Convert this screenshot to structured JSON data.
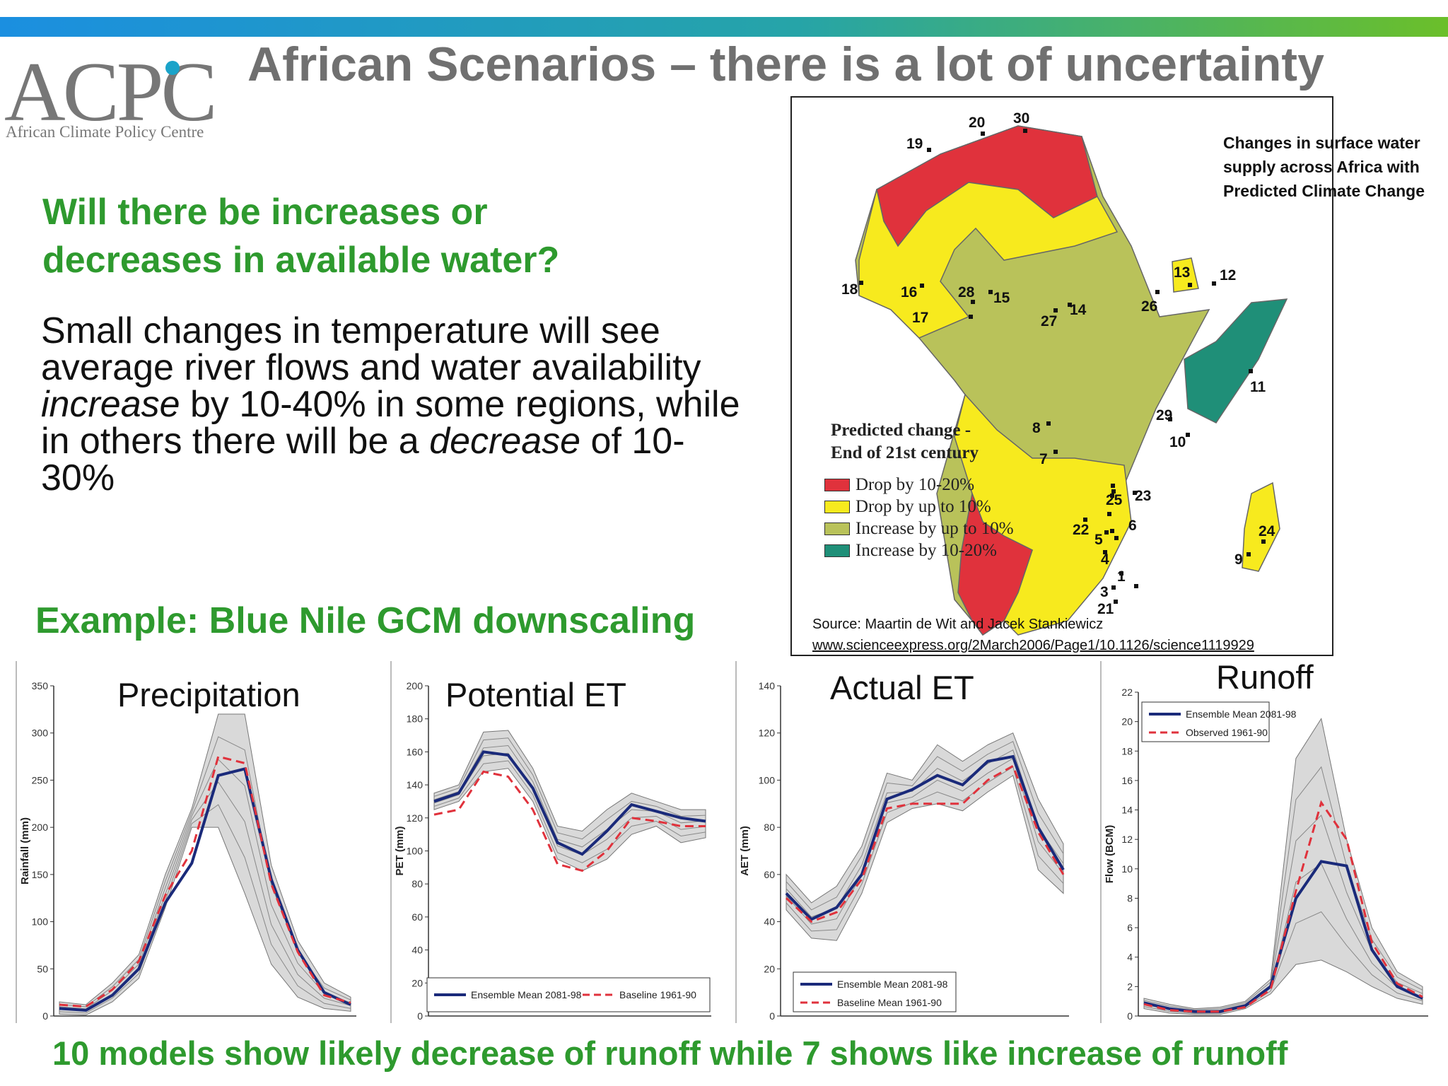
{
  "header": {
    "title": "African Scenarios – there is a lot of uncertainty",
    "logo_text": "ACPC",
    "logo_subtitle": "African Climate Policy Centre"
  },
  "colors": {
    "green": "#2e9a2e",
    "red": "#e0323c",
    "yellow": "#f7ea1e",
    "olive": "#b9c25a",
    "teal": "#1f8f78",
    "ensemble": "#1a2a7a",
    "baseline": "#e0323c"
  },
  "question": "Will there be increases or decreases in available water?",
  "body": {
    "part1": "Small changes in temperature will see average river flows and water availability ",
    "word1": "increase",
    "part2": " by 10-40% in some regions, while in others there will be a ",
    "word2": "decrease",
    "part3": " of 10-30%"
  },
  "example_heading": "Example: Blue Nile GCM downscaling",
  "bottom_statement": "10 models show likely decrease of runoff while 7 shows like increase of runoff",
  "map": {
    "caption": "Changes in surface water supply across Africa with Predicted Climate Change",
    "legend_title_1": "Predicted change -",
    "legend_title_2": "End of 21st century",
    "legend": [
      {
        "label": "Drop by 10-20%",
        "color": "#e0323c"
      },
      {
        "label": "Drop by up to 10%",
        "color": "#f7ea1e"
      },
      {
        "label": "Increase by up to 10%",
        "color": "#b9c25a"
      },
      {
        "label": "Increase by 10-20%",
        "color": "#1f8f78"
      }
    ],
    "points": [
      "1",
      "3",
      "4",
      "5",
      "6",
      "7",
      "8",
      "9",
      "10",
      "11",
      "12",
      "13",
      "14",
      "15",
      "16",
      "17",
      "18",
      "19",
      "20",
      "21",
      "22",
      "23",
      "24",
      "25",
      "26",
      "27",
      "28",
      "29",
      "30"
    ],
    "source_line1": "Source: Maartin de Wit and Jacek Stankiewicz",
    "source_line2": "www.scienceexpress.org/2March2006/Page1/10.1126/science1119929"
  },
  "chart_data": [
    {
      "type": "line",
      "title": "Precipitation",
      "ylabel": "Rainfall (mm)",
      "ylim": [
        0,
        350
      ],
      "yticks": [
        0,
        50,
        100,
        150,
        200,
        250,
        300,
        350
      ],
      "x": [
        1,
        2,
        3,
        4,
        5,
        6,
        7,
        8,
        9,
        10,
        11,
        12
      ],
      "band_low": [
        2,
        1,
        15,
        40,
        115,
        200,
        200,
        130,
        55,
        20,
        8,
        5
      ],
      "band_high": [
        15,
        12,
        35,
        65,
        150,
        220,
        320,
        320,
        160,
        80,
        35,
        20
      ],
      "series": [
        {
          "name": "",
          "values": [
            8,
            6,
            22,
            50,
            120,
            162,
            255,
            262,
            145,
            70,
            25,
            12
          ],
          "style": "ensemble"
        },
        {
          "name": "",
          "values": [
            12,
            10,
            28,
            58,
            128,
            175,
            275,
            268,
            140,
            68,
            22,
            14
          ],
          "style": "baseline"
        }
      ]
    },
    {
      "type": "line",
      "title": "Potential ET",
      "ylabel": "PET (mm)",
      "ylim": [
        0,
        200
      ],
      "yticks": [
        0,
        20,
        40,
        60,
        80,
        100,
        120,
        140,
        160,
        180,
        200
      ],
      "x": [
        1,
        2,
        3,
        4,
        5,
        6,
        7,
        8,
        9,
        10,
        11,
        12
      ],
      "band_low": [
        125,
        130,
        148,
        150,
        130,
        95,
        88,
        95,
        110,
        115,
        105,
        108
      ],
      "band_high": [
        135,
        140,
        172,
        173,
        150,
        115,
        112,
        125,
        135,
        130,
        125,
        125
      ],
      "legend": [
        "Ensemble Mean 2081-98",
        "Baseline 1961-90"
      ],
      "series": [
        {
          "name": "Ensemble Mean 2081-98",
          "values": [
            130,
            135,
            160,
            158,
            138,
            105,
            98,
            112,
            128,
            124,
            120,
            118
          ],
          "style": "ensemble"
        },
        {
          "name": "Baseline 1961-90",
          "values": [
            122,
            125,
            148,
            145,
            125,
            92,
            88,
            100,
            120,
            118,
            115,
            115
          ],
          "style": "baseline"
        }
      ]
    },
    {
      "type": "line",
      "title": "Actual ET",
      "ylabel": "AET (mm)",
      "ylim": [
        0,
        140
      ],
      "yticks": [
        0,
        20,
        40,
        60,
        80,
        100,
        120,
        140
      ],
      "x": [
        1,
        2,
        3,
        4,
        5,
        6,
        7,
        8,
        9,
        10,
        11,
        12
      ],
      "band_low": [
        45,
        33,
        32,
        52,
        82,
        88,
        90,
        87,
        95,
        102,
        62,
        52
      ],
      "band_high": [
        60,
        48,
        55,
        72,
        103,
        100,
        115,
        108,
        115,
        120,
        92,
        73
      ],
      "legend": [
        "Ensemble Mean 2081-98",
        "Baseline Mean 1961-90"
      ],
      "series": [
        {
          "name": "Ensemble Mean 2081-98",
          "values": [
            52,
            41,
            46,
            60,
            92,
            96,
            102,
            98,
            108,
            110,
            80,
            62
          ],
          "style": "ensemble"
        },
        {
          "name": "Baseline Mean 1961-90",
          "values": [
            50,
            40,
            44,
            58,
            88,
            90,
            90,
            90,
            100,
            106,
            78,
            60
          ],
          "style": "baseline"
        }
      ]
    },
    {
      "type": "line",
      "title": "Runoff",
      "ylabel": "Flow (BCM)",
      "ylim": [
        0,
        22
      ],
      "yticks": [
        0,
        2,
        4,
        6,
        8,
        10,
        12,
        14,
        16,
        18,
        20,
        22
      ],
      "x": [
        1,
        2,
        3,
        4,
        5,
        6,
        7,
        8,
        9,
        10,
        11,
        12
      ],
      "band_low": [
        0.5,
        0.2,
        0.1,
        0.1,
        0.5,
        1.5,
        3.5,
        3.8,
        3.0,
        2.0,
        1.2,
        0.8
      ],
      "band_high": [
        1.2,
        0.8,
        0.5,
        0.6,
        1.0,
        2.5,
        17.5,
        20.2,
        12.0,
        6.0,
        3.0,
        2.0
      ],
      "legend": [
        "Ensemble Mean 2081-98",
        "Observed 1961-90"
      ],
      "series": [
        {
          "name": "Ensemble Mean 2081-98",
          "values": [
            0.9,
            0.5,
            0.3,
            0.3,
            0.7,
            2.0,
            8.0,
            10.5,
            10.2,
            4.5,
            2.0,
            1.2
          ],
          "style": "ensemble"
        },
        {
          "name": "Observed 1961-90",
          "values": [
            0.8,
            0.4,
            0.3,
            0.3,
            0.6,
            1.8,
            8.5,
            14.5,
            12.0,
            5.0,
            2.2,
            1.3
          ],
          "style": "baseline"
        }
      ]
    }
  ]
}
